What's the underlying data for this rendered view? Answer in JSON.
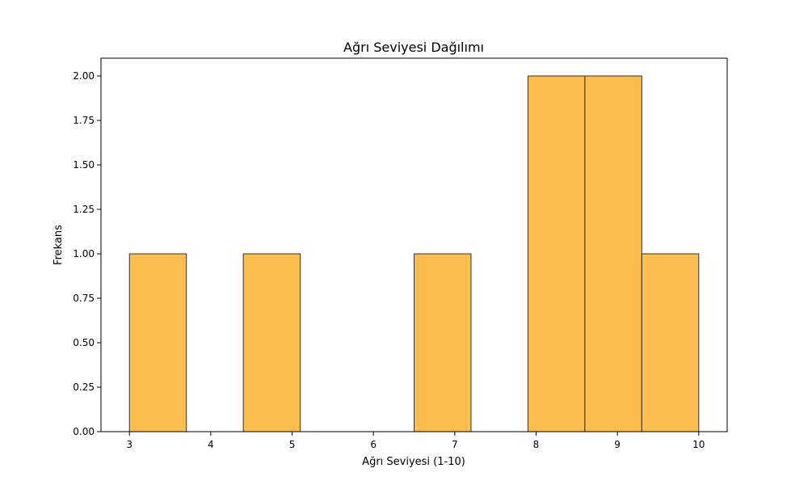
{
  "chart_data": {
    "type": "bar",
    "title": "Ağrı Seviyesi Dağılımı",
    "xlabel": "Ağrı Seviyesi (1-10)",
    "ylabel": "Frekans",
    "bins": [
      {
        "start": 3.0,
        "end": 3.7,
        "count": 1
      },
      {
        "start": 4.4,
        "end": 5.1,
        "count": 1
      },
      {
        "start": 6.5,
        "end": 7.2,
        "count": 1
      },
      {
        "start": 7.9,
        "end": 8.6,
        "count": 2
      },
      {
        "start": 8.6,
        "end": 9.3,
        "count": 2
      },
      {
        "start": 9.3,
        "end": 10.0,
        "count": 1
      }
    ],
    "xlim": [
      2.65,
      10.35
    ],
    "ylim": [
      0,
      2.1
    ],
    "xticks": [
      3,
      4,
      5,
      6,
      7,
      8,
      9,
      10
    ],
    "yticks": [
      "0.00",
      "0.25",
      "0.50",
      "0.75",
      "1.00",
      "1.25",
      "1.50",
      "1.75",
      "2.00"
    ],
    "grid": false,
    "colors": {
      "bar_fill": "#fdbe4f",
      "bar_edge": "#333333"
    }
  }
}
